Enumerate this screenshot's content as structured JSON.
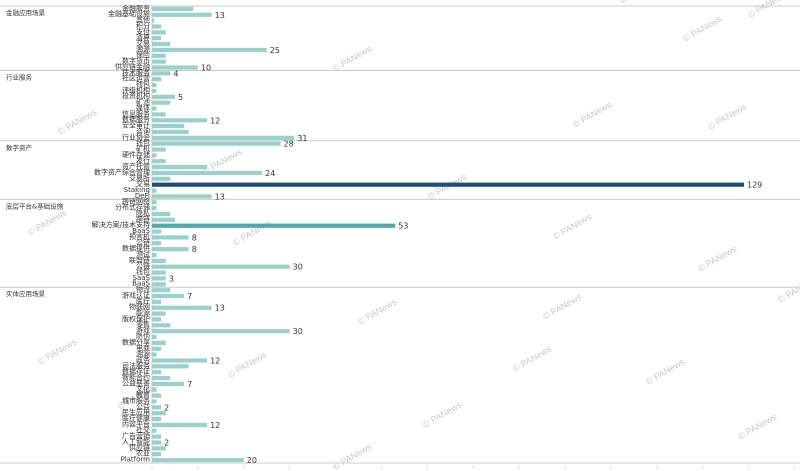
{
  "chart_data": {
    "type": "bar",
    "orientation": "horizontal",
    "grid": false,
    "legend": "none",
    "colors": {
      "bar": "#9cd0cf",
      "bar_mid": "#4da9b2",
      "bar_max": "#1f4e79",
      "divider": "#cccccc",
      "text": "#333333"
    },
    "watermark": "PANews",
    "xlim": [
      0,
      140
    ],
    "groups": [
      {
        "name": "金融应用场景",
        "rows": [
          {
            "label": "金融服务",
            "value": 9
          },
          {
            "label": "金融基础设施",
            "value": 13,
            "show_label": true
          },
          {
            "label": "其他",
            "value": 0.5
          },
          {
            "label": "积分",
            "value": 2
          },
          {
            "label": "支付",
            "value": 3
          },
          {
            "label": "清算",
            "value": 2
          },
          {
            "label": "交易",
            "value": 4
          },
          {
            "label": "溯源",
            "value": 25,
            "show_label": true
          },
          {
            "label": "保险",
            "value": 3
          },
          {
            "label": "数字货币",
            "value": 3
          },
          {
            "label": "供应链金融",
            "value": 10,
            "show_label": true
          }
        ]
      },
      {
        "name": "行业服务",
        "rows": [
          {
            "label": "技术服务",
            "value": 4,
            "show_label": true
          },
          {
            "label": "社区运营",
            "value": 2
          },
          {
            "label": "钱包",
            "value": 1
          },
          {
            "label": "评级机构",
            "value": 1
          },
          {
            "label": "投资机构",
            "value": 5,
            "show_label": true
          },
          {
            "label": "矿池",
            "value": 4
          },
          {
            "label": "媒体",
            "value": 1
          },
          {
            "label": "信息服务",
            "value": 3
          },
          {
            "label": "数据服务",
            "value": 12,
            "show_label": true
          },
          {
            "label": "安全审计",
            "value": 7
          },
          {
            "label": "咨询",
            "value": 8
          },
          {
            "label": "行业协会",
            "value": 31,
            "show_label": true
          }
        ]
      },
      {
        "name": "数字资产",
        "rows": [
          {
            "label": "钱包",
            "value": 28,
            "show_label": true
          },
          {
            "label": "矿机",
            "value": 3
          },
          {
            "label": "硬件存储",
            "value": 1
          },
          {
            "label": "发行",
            "value": 3
          },
          {
            "label": "资产托管",
            "value": 12
          },
          {
            "label": "数字资产综合管理",
            "value": 24,
            "show_label": true
          },
          {
            "label": "交易所",
            "value": 4
          },
          {
            "label": "交易",
            "value": 129,
            "show_label": true
          },
          {
            "label": "Staking",
            "value": 1
          },
          {
            "label": "DeFi",
            "value": 13,
            "show_label": true
          }
        ]
      },
      {
        "name": "底层平台&基础设施",
        "rows": [
          {
            "label": "跨链网络",
            "value": 1
          },
          {
            "label": "分布式存储",
            "value": 1
          },
          {
            "label": "隐私",
            "value": 4
          },
          {
            "label": "跨链",
            "value": 5
          },
          {
            "label": "解决方案/技术支持",
            "value": 53,
            "show_label": true
          },
          {
            "label": "BaaS",
            "value": 2
          },
          {
            "label": "预言机",
            "value": 8,
            "show_label": true
          },
          {
            "label": "公链",
            "value": 2
          },
          {
            "label": "数据提供",
            "value": 8,
            "show_label": true
          },
          {
            "label": "测试",
            "value": 1
          },
          {
            "label": "联盟链",
            "value": 3
          },
          {
            "label": "公链",
            "value": 30,
            "show_label": true
          },
          {
            "label": "钱包",
            "value": 3
          },
          {
            "label": "SaaS",
            "value": 3,
            "show_label": true
          },
          {
            "label": "BaaS",
            "value": 3
          }
        ]
      },
      {
        "name": "实体应用场景",
        "rows": [
          {
            "label": "物流",
            "value": 4
          },
          {
            "label": "游戏认证",
            "value": 7,
            "show_label": true
          },
          {
            "label": "医疗",
            "value": 2
          },
          {
            "label": "物联网",
            "value": 13,
            "show_label": true
          },
          {
            "label": "能源",
            "value": 3
          },
          {
            "label": "版权保护",
            "value": 2
          },
          {
            "label": "零售",
            "value": 4
          },
          {
            "label": "游戏",
            "value": 30,
            "show_label": true
          },
          {
            "label": "防伪",
            "value": 1
          },
          {
            "label": "数据分享",
            "value": 3
          },
          {
            "label": "电商",
            "value": 2
          },
          {
            "label": "溯源",
            "value": 1
          },
          {
            "label": "政务",
            "value": 12,
            "show_label": true
          },
          {
            "label": "司法服务",
            "value": 8
          },
          {
            "label": "数据存证",
            "value": 2
          },
          {
            "label": "智能合约",
            "value": 4
          },
          {
            "label": "公益慈善",
            "value": 7,
            "show_label": true
          },
          {
            "label": "文化",
            "value": 1
          },
          {
            "label": "教育",
            "value": 2
          },
          {
            "label": "城市服务",
            "value": 1
          },
          {
            "label": "公益",
            "value": 2,
            "show_label": true
          },
          {
            "label": "民生应用",
            "value": 3
          },
          {
            "label": "医疗健康",
            "value": 2
          },
          {
            "label": "内容平台",
            "value": 12,
            "show_label": true
          },
          {
            "label": "社交",
            "value": 1
          },
          {
            "label": "广告营销",
            "value": 2
          },
          {
            "label": "人工智能",
            "value": 2,
            "show_label": true
          },
          {
            "label": "供应链",
            "value": 3
          },
          {
            "label": "农业",
            "value": 2
          },
          {
            "label": "Platform",
            "value": 20,
            "show_label": true
          }
        ]
      }
    ]
  }
}
